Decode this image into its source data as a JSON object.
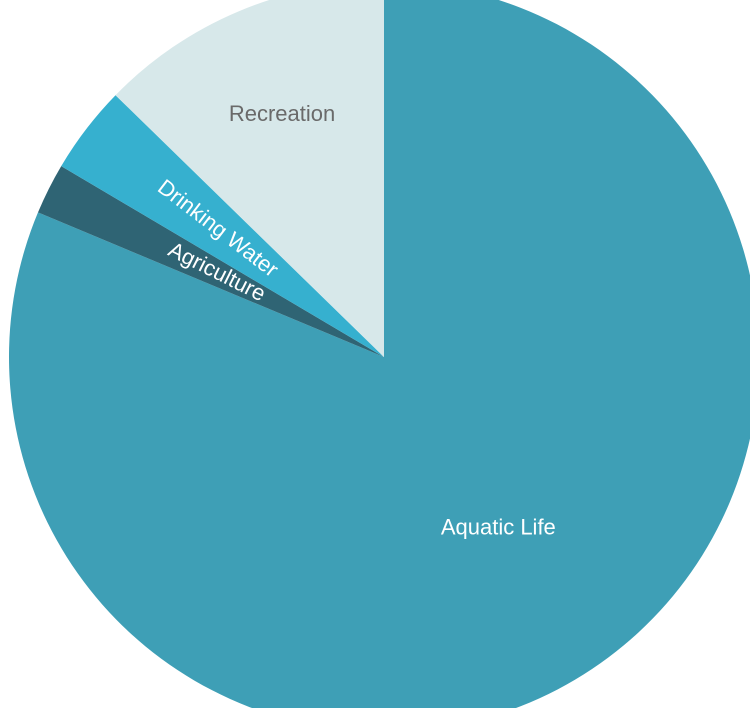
{
  "chart_data": {
    "type": "pie",
    "start": "12 o'clock",
    "direction": "clockwise",
    "slices": [
      {
        "label": "Aquatic Life",
        "value": 81.3,
        "color": "#3e9fb6",
        "label_color": "#ffffff"
      },
      {
        "label": "Agriculture",
        "value": 2.2,
        "color": "#2f6474",
        "label_color": "#ffffff"
      },
      {
        "label": "Drinking Water",
        "value": 3.8,
        "color": "#36b0cf",
        "label_color": "#ffffff"
      },
      {
        "label": "Recreation",
        "value": 12.7,
        "color": "#d7e8ea",
        "label_color": "#6a6a6a"
      }
    ]
  }
}
